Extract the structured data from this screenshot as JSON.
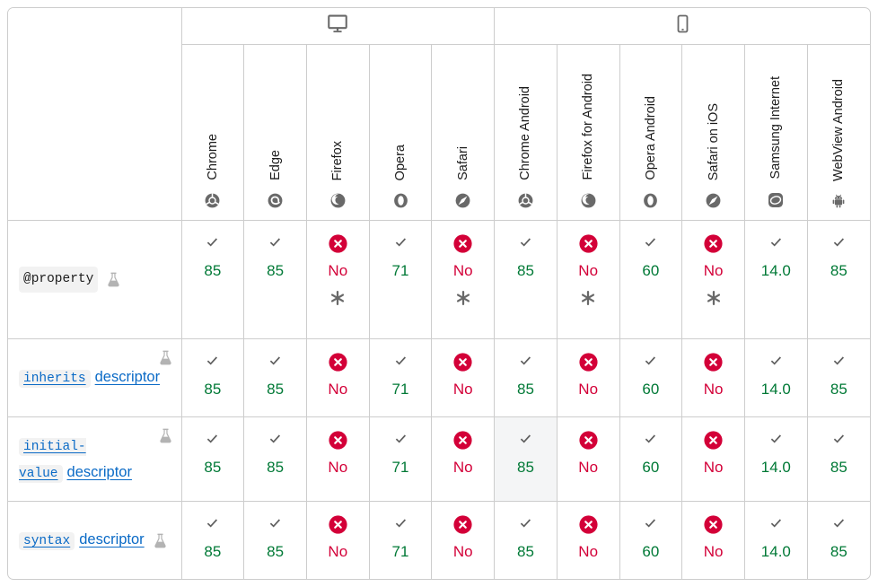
{
  "colors": {
    "supported_green": "#007936",
    "unsupported_red": "#d30038",
    "link_blue": "#0a6ac6",
    "border_gray": "#cdcdcd",
    "code_background": "#f2f2f2",
    "icon_gray": "#696969",
    "flask_gray": "#b3b3b3",
    "highlight_cell": "#f4f5f6"
  },
  "header": {
    "platforms": [
      {
        "icon": "desktop-icon",
        "span": 5
      },
      {
        "icon": "mobile-icon",
        "span": 6
      }
    ],
    "browsers": [
      {
        "name": "Chrome",
        "icon": "chrome-icon"
      },
      {
        "name": "Edge",
        "icon": "edge-icon"
      },
      {
        "name": "Firefox",
        "icon": "firefox-icon"
      },
      {
        "name": "Opera",
        "icon": "opera-icon"
      },
      {
        "name": "Safari",
        "icon": "safari-icon"
      },
      {
        "name": "Chrome Android",
        "icon": "chrome-icon"
      },
      {
        "name": "Firefox for Android",
        "icon": "firefox-icon"
      },
      {
        "name": "Opera Android",
        "icon": "opera-icon"
      },
      {
        "name": "Safari on iOS",
        "icon": "safari-icon"
      },
      {
        "name": "Samsung Internet",
        "icon": "samsung-icon"
      },
      {
        "name": "WebView Android",
        "icon": "android-icon"
      }
    ]
  },
  "rows": [
    {
      "label_code": "@property",
      "label_suffix": "",
      "is_link": false,
      "experimental": true,
      "cells": [
        {
          "ok": true,
          "version": "85"
        },
        {
          "ok": true,
          "version": "85"
        },
        {
          "ok": false,
          "version": "No",
          "note": true
        },
        {
          "ok": true,
          "version": "71"
        },
        {
          "ok": false,
          "version": "No",
          "note": true
        },
        {
          "ok": true,
          "version": "85"
        },
        {
          "ok": false,
          "version": "No",
          "note": true
        },
        {
          "ok": true,
          "version": "60"
        },
        {
          "ok": false,
          "version": "No",
          "note": true
        },
        {
          "ok": true,
          "version": "14.0"
        },
        {
          "ok": true,
          "version": "85"
        }
      ]
    },
    {
      "label_code": "inherits",
      "label_suffix": "descriptor",
      "is_link": true,
      "experimental": true,
      "cells": [
        {
          "ok": true,
          "version": "85"
        },
        {
          "ok": true,
          "version": "85"
        },
        {
          "ok": false,
          "version": "No"
        },
        {
          "ok": true,
          "version": "71"
        },
        {
          "ok": false,
          "version": "No"
        },
        {
          "ok": true,
          "version": "85"
        },
        {
          "ok": false,
          "version": "No"
        },
        {
          "ok": true,
          "version": "60"
        },
        {
          "ok": false,
          "version": "No"
        },
        {
          "ok": true,
          "version": "14.0"
        },
        {
          "ok": true,
          "version": "85"
        }
      ]
    },
    {
      "label_code": "initial-value",
      "label_suffix": "descriptor",
      "is_link": true,
      "experimental": true,
      "cells": [
        {
          "ok": true,
          "version": "85"
        },
        {
          "ok": true,
          "version": "85"
        },
        {
          "ok": false,
          "version": "No"
        },
        {
          "ok": true,
          "version": "71"
        },
        {
          "ok": false,
          "version": "No"
        },
        {
          "ok": true,
          "version": "85",
          "highlight": true
        },
        {
          "ok": false,
          "version": "No"
        },
        {
          "ok": true,
          "version": "60"
        },
        {
          "ok": false,
          "version": "No"
        },
        {
          "ok": true,
          "version": "14.0"
        },
        {
          "ok": true,
          "version": "85"
        }
      ]
    },
    {
      "label_code": "syntax",
      "label_suffix": "descriptor",
      "is_link": true,
      "experimental": true,
      "cells": [
        {
          "ok": true,
          "version": "85"
        },
        {
          "ok": true,
          "version": "85"
        },
        {
          "ok": false,
          "version": "No"
        },
        {
          "ok": true,
          "version": "71"
        },
        {
          "ok": false,
          "version": "No"
        },
        {
          "ok": true,
          "version": "85"
        },
        {
          "ok": false,
          "version": "No"
        },
        {
          "ok": true,
          "version": "60"
        },
        {
          "ok": false,
          "version": "No"
        },
        {
          "ok": true,
          "version": "14.0"
        },
        {
          "ok": true,
          "version": "85"
        }
      ]
    }
  ]
}
